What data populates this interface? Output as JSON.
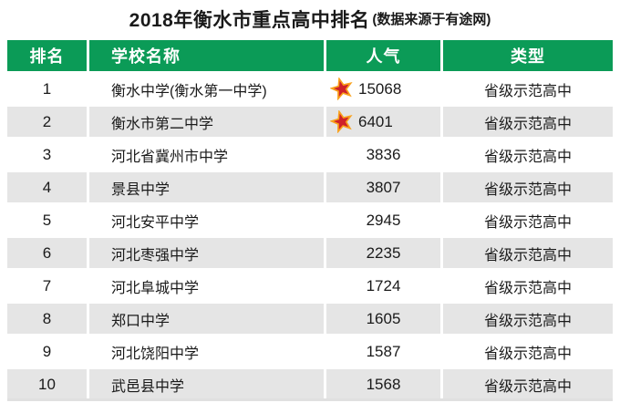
{
  "title": {
    "main": "2018年衡水市重点高中排名",
    "source_note": "(数据来源于有途网)"
  },
  "table": {
    "columns": [
      "排名",
      "学校名称",
      "人气",
      "类型"
    ],
    "rows": [
      {
        "rank": "1",
        "school": "衡水中学(衡水第一中学)",
        "popularity": "15068",
        "starred": true,
        "type": "省级示范高中"
      },
      {
        "rank": "2",
        "school": "衡水市第二中学",
        "popularity": "6401",
        "starred": true,
        "type": "省级示范高中"
      },
      {
        "rank": "3",
        "school": "河北省冀州市中学",
        "popularity": "3836",
        "starred": false,
        "type": "省级示范高中"
      },
      {
        "rank": "4",
        "school": "景县中学",
        "popularity": "3807",
        "starred": false,
        "type": "省级示范高中"
      },
      {
        "rank": "5",
        "school": "河北安平中学",
        "popularity": "2945",
        "starred": false,
        "type": "省级示范高中"
      },
      {
        "rank": "6",
        "school": "河北枣强中学",
        "popularity": "2235",
        "starred": false,
        "type": "省级示范高中"
      },
      {
        "rank": "7",
        "school": "河北阜城中学",
        "popularity": "1724",
        "starred": false,
        "type": "省级示范高中"
      },
      {
        "rank": "8",
        "school": "郑口中学",
        "popularity": "1605",
        "starred": false,
        "type": "省级示范高中"
      },
      {
        "rank": "9",
        "school": "河北饶阳中学",
        "popularity": "1587",
        "starred": false,
        "type": "省级示范高中"
      },
      {
        "rank": "10",
        "school": "武邑县中学",
        "popularity": "1568",
        "starred": false,
        "type": "省级示范高中"
      }
    ]
  },
  "icons": {
    "popularity_star": "star"
  },
  "colors": {
    "header_green": "#0b9b57",
    "row_alt_gray": "#e5e5e5",
    "text": "#1a1a1a",
    "star_red": "#cf2229",
    "star_gold": "#f9a11b"
  }
}
